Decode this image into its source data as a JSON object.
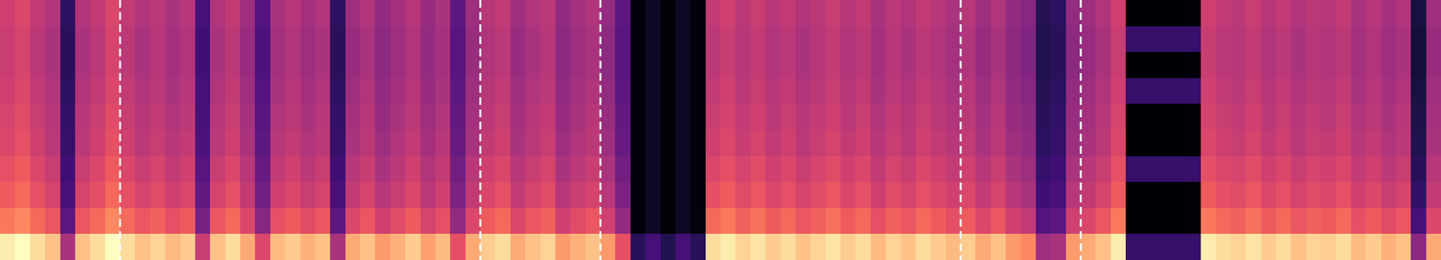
{
  "chart_data": {
    "type": "heatmap",
    "tick_labels": false,
    "grid": false,
    "vlines": [
      8,
      32,
      40,
      64,
      72
    ],
    "cells": [
      [
        58,
        60,
        56,
        53,
        28,
        53,
        56,
        60,
        56,
        53,
        55,
        52,
        54,
        33,
        53,
        56,
        50,
        36,
        52,
        54,
        51,
        53,
        28,
        50,
        53,
        48,
        51,
        54,
        49,
        52,
        38,
        50,
        54,
        56,
        50,
        53,
        55,
        48,
        51,
        53,
        48,
        38,
        12,
        18,
        10,
        18,
        12,
        56,
        58,
        55,
        57,
        54,
        56,
        53,
        55,
        57,
        54,
        56,
        52,
        55,
        53,
        56,
        54,
        52,
        54,
        50,
        53,
        48,
        46,
        26,
        28,
        48,
        50,
        53,
        58,
        8,
        8,
        8,
        8,
        10,
        58,
        56,
        55,
        57,
        54,
        56,
        53,
        55,
        54,
        56,
        52,
        54,
        51,
        53,
        23,
        50
      ],
      [
        57,
        59,
        55,
        52,
        27,
        52,
        55,
        59,
        55,
        52,
        54,
        51,
        53,
        32,
        52,
        55,
        49,
        35,
        51,
        53,
        50,
        52,
        27,
        49,
        52,
        47,
        50,
        53,
        48,
        51,
        37,
        49,
        53,
        55,
        49,
        52,
        54,
        47,
        50,
        52,
        47,
        37,
        12,
        18,
        10,
        18,
        12,
        55,
        57,
        54,
        56,
        53,
        55,
        52,
        54,
        56,
        53,
        55,
        51,
        54,
        52,
        55,
        53,
        51,
        53,
        49,
        52,
        47,
        45,
        25,
        27,
        47,
        49,
        52,
        57,
        30,
        30,
        30,
        30,
        30,
        57,
        55,
        54,
        56,
        53,
        55,
        52,
        54,
        53,
        55,
        51,
        53,
        50,
        52,
        22,
        49
      ],
      [
        57,
        59,
        55,
        52,
        27,
        52,
        55,
        59,
        55,
        52,
        54,
        51,
        53,
        32,
        52,
        55,
        49,
        35,
        51,
        53,
        50,
        52,
        27,
        49,
        52,
        47,
        50,
        53,
        48,
        51,
        37,
        49,
        53,
        55,
        49,
        52,
        54,
        47,
        50,
        52,
        47,
        37,
        12,
        18,
        10,
        18,
        12,
        55,
        57,
        54,
        56,
        53,
        55,
        52,
        54,
        56,
        53,
        55,
        51,
        54,
        52,
        55,
        53,
        51,
        53,
        49,
        52,
        47,
        45,
        25,
        27,
        47,
        49,
        52,
        57,
        8,
        8,
        8,
        8,
        10,
        57,
        55,
        54,
        56,
        53,
        55,
        52,
        54,
        53,
        55,
        51,
        53,
        50,
        52,
        22,
        49
      ],
      [
        58,
        60,
        56,
        53,
        28,
        53,
        56,
        60,
        56,
        53,
        55,
        52,
        54,
        33,
        53,
        56,
        50,
        36,
        52,
        54,
        51,
        53,
        28,
        50,
        53,
        48,
        51,
        54,
        49,
        52,
        38,
        50,
        54,
        56,
        50,
        53,
        55,
        48,
        51,
        53,
        48,
        38,
        12,
        18,
        10,
        18,
        12,
        56,
        58,
        55,
        57,
        54,
        56,
        53,
        55,
        57,
        54,
        56,
        52,
        55,
        53,
        56,
        54,
        52,
        54,
        50,
        53,
        48,
        46,
        26,
        28,
        48,
        50,
        53,
        58,
        30,
        30,
        30,
        30,
        30,
        58,
        56,
        55,
        57,
        54,
        56,
        53,
        55,
        54,
        56,
        52,
        54,
        51,
        53,
        23,
        50
      ],
      [
        59,
        61,
        57,
        54,
        29,
        54,
        57,
        61,
        57,
        54,
        56,
        53,
        55,
        34,
        54,
        57,
        51,
        37,
        53,
        55,
        52,
        54,
        29,
        51,
        54,
        49,
        52,
        55,
        50,
        53,
        39,
        51,
        55,
        57,
        51,
        54,
        56,
        49,
        52,
        54,
        49,
        39,
        12,
        18,
        10,
        18,
        12,
        57,
        59,
        56,
        58,
        55,
        57,
        54,
        56,
        58,
        55,
        57,
        53,
        56,
        54,
        57,
        55,
        53,
        55,
        51,
        54,
        49,
        47,
        27,
        29,
        49,
        51,
        54,
        59,
        8,
        8,
        8,
        8,
        10,
        59,
        57,
        56,
        58,
        55,
        57,
        54,
        56,
        55,
        57,
        53,
        55,
        52,
        54,
        24,
        51
      ],
      [
        60,
        62,
        58,
        55,
        30,
        55,
        58,
        62,
        58,
        55,
        57,
        54,
        56,
        35,
        55,
        58,
        52,
        38,
        54,
        56,
        53,
        55,
        30,
        52,
        55,
        50,
        53,
        56,
        51,
        54,
        40,
        52,
        56,
        58,
        52,
        55,
        57,
        50,
        53,
        55,
        50,
        40,
        12,
        18,
        10,
        18,
        12,
        58,
        60,
        57,
        59,
        56,
        58,
        55,
        57,
        59,
        56,
        58,
        54,
        57,
        55,
        58,
        56,
        54,
        56,
        52,
        55,
        50,
        48,
        28,
        30,
        50,
        52,
        55,
        60,
        8,
        8,
        8,
        8,
        10,
        60,
        58,
        57,
        59,
        56,
        58,
        55,
        57,
        56,
        58,
        54,
        56,
        53,
        55,
        25,
        52
      ],
      [
        62,
        64,
        60,
        57,
        32,
        57,
        60,
        64,
        60,
        57,
        59,
        56,
        58,
        37,
        57,
        60,
        54,
        40,
        56,
        58,
        55,
        57,
        32,
        54,
        57,
        52,
        55,
        58,
        53,
        56,
        42,
        54,
        58,
        60,
        54,
        57,
        59,
        52,
        55,
        57,
        52,
        42,
        12,
        18,
        10,
        18,
        12,
        60,
        62,
        59,
        61,
        58,
        60,
        57,
        59,
        61,
        58,
        60,
        56,
        59,
        57,
        60,
        58,
        56,
        58,
        54,
        57,
        52,
        50,
        30,
        32,
        52,
        54,
        57,
        62,
        30,
        30,
        30,
        30,
        30,
        62,
        60,
        59,
        61,
        58,
        60,
        57,
        59,
        58,
        60,
        56,
        58,
        55,
        57,
        27,
        54
      ],
      [
        64,
        66,
        62,
        59,
        34,
        59,
        62,
        66,
        62,
        59,
        61,
        58,
        60,
        39,
        59,
        62,
        56,
        42,
        58,
        60,
        57,
        59,
        34,
        56,
        59,
        54,
        57,
        60,
        55,
        58,
        44,
        56,
        60,
        62,
        56,
        59,
        61,
        54,
        57,
        59,
        54,
        44,
        12,
        18,
        10,
        18,
        12,
        62,
        64,
        61,
        63,
        60,
        62,
        59,
        61,
        63,
        60,
        62,
        58,
        61,
        59,
        62,
        60,
        58,
        60,
        56,
        59,
        54,
        52,
        32,
        34,
        54,
        56,
        59,
        64,
        8,
        8,
        8,
        8,
        10,
        64,
        62,
        61,
        63,
        60,
        62,
        59,
        61,
        60,
        62,
        58,
        60,
        57,
        59,
        29,
        56
      ],
      [
        68,
        70,
        66,
        63,
        38,
        63,
        66,
        70,
        66,
        63,
        65,
        62,
        64,
        43,
        63,
        66,
        60,
        46,
        62,
        64,
        61,
        63,
        38,
        60,
        63,
        58,
        61,
        64,
        59,
        62,
        48,
        60,
        64,
        66,
        60,
        63,
        65,
        58,
        61,
        63,
        58,
        48,
        12,
        18,
        10,
        18,
        12,
        66,
        68,
        65,
        67,
        64,
        66,
        63,
        65,
        67,
        64,
        66,
        62,
        65,
        63,
        66,
        64,
        62,
        64,
        60,
        63,
        58,
        56,
        36,
        38,
        58,
        60,
        63,
        68,
        8,
        8,
        8,
        8,
        10,
        68,
        66,
        65,
        67,
        64,
        66,
        63,
        65,
        64,
        66,
        62,
        64,
        61,
        63,
        33,
        60
      ],
      [
        82,
        84,
        80,
        77,
        52,
        77,
        80,
        84,
        80,
        77,
        79,
        76,
        78,
        57,
        77,
        80,
        74,
        60,
        76,
        78,
        75,
        77,
        52,
        74,
        77,
        72,
        75,
        78,
        73,
        76,
        62,
        74,
        78,
        80,
        74,
        77,
        79,
        72,
        75,
        77,
        72,
        62,
        27,
        33,
        25,
        33,
        27,
        80,
        82,
        79,
        81,
        78,
        80,
        77,
        79,
        81,
        78,
        80,
        76,
        79,
        77,
        80,
        78,
        76,
        78,
        74,
        77,
        72,
        70,
        50,
        52,
        72,
        74,
        77,
        82,
        30,
        30,
        30,
        30,
        30,
        82,
        80,
        79,
        81,
        78,
        80,
        77,
        79,
        78,
        80,
        76,
        78,
        75,
        77,
        47,
        74
      ]
    ]
  }
}
